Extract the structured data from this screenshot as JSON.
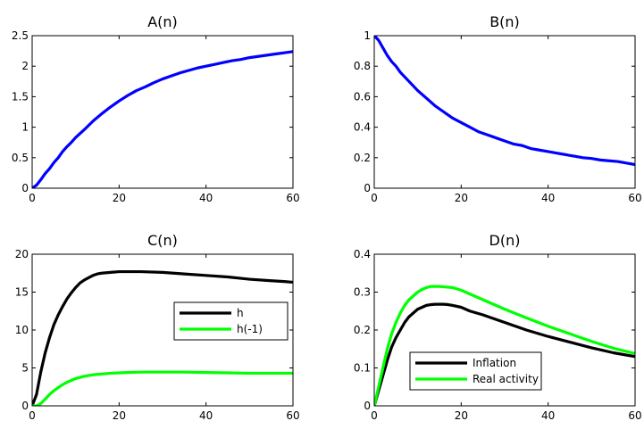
{
  "chart_data": [
    {
      "type": "line",
      "title": "A(n)",
      "xlabel": "",
      "ylabel": "",
      "xlim": [
        0,
        60
      ],
      "ylim": [
        0,
        2.5
      ],
      "xticks": [
        0,
        20,
        40,
        60
      ],
      "yticks": [
        0,
        0.5,
        1,
        1.5,
        2,
        2.5
      ],
      "xtick_labels": [
        "0",
        "20",
        "40",
        "60"
      ],
      "ytick_labels": [
        "0",
        "0.5",
        "1",
        "1.5",
        "2",
        "2.5"
      ],
      "grid": false,
      "legend": null,
      "series": [
        {
          "color": "#0000ff",
          "x": [
            0,
            1,
            2,
            3,
            4,
            5,
            6,
            7,
            8,
            9,
            10,
            12,
            14,
            16,
            18,
            20,
            22,
            24,
            26,
            28,
            30,
            32,
            34,
            36,
            38,
            40,
            42,
            44,
            46,
            48,
            50,
            52,
            54,
            56,
            58,
            60
          ],
          "y": [
            0,
            0.05,
            0.14,
            0.24,
            0.32,
            0.42,
            0.5,
            0.6,
            0.68,
            0.75,
            0.83,
            0.96,
            1.1,
            1.22,
            1.33,
            1.43,
            1.52,
            1.6,
            1.66,
            1.73,
            1.79,
            1.84,
            1.89,
            1.93,
            1.97,
            2.0,
            2.03,
            2.06,
            2.09,
            2.11,
            2.14,
            2.16,
            2.18,
            2.2,
            2.22,
            2.24
          ]
        }
      ]
    },
    {
      "type": "line",
      "title": "B(n)",
      "xlabel": "",
      "ylabel": "",
      "xlim": [
        0,
        60
      ],
      "ylim": [
        0,
        1
      ],
      "xticks": [
        0,
        20,
        40,
        60
      ],
      "yticks": [
        0,
        0.2,
        0.4,
        0.6,
        0.8,
        1
      ],
      "xtick_labels": [
        "0",
        "20",
        "40",
        "60"
      ],
      "ytick_labels": [
        "0",
        "0.2",
        "0.4",
        "0.6",
        "0.8",
        "1"
      ],
      "grid": false,
      "legend": null,
      "series": [
        {
          "color": "#0000ff",
          "x": [
            0,
            1,
            2,
            3,
            4,
            5,
            6,
            8,
            10,
            12,
            14,
            16,
            18,
            20,
            22,
            24,
            26,
            28,
            30,
            32,
            34,
            36,
            38,
            40,
            42,
            44,
            46,
            48,
            50,
            52,
            54,
            56,
            58,
            60
          ],
          "y": [
            1.0,
            0.97,
            0.92,
            0.87,
            0.83,
            0.8,
            0.76,
            0.7,
            0.64,
            0.59,
            0.54,
            0.5,
            0.46,
            0.43,
            0.4,
            0.37,
            0.35,
            0.33,
            0.31,
            0.29,
            0.28,
            0.26,
            0.25,
            0.24,
            0.23,
            0.22,
            0.21,
            0.2,
            0.195,
            0.185,
            0.18,
            0.175,
            0.165,
            0.155
          ]
        }
      ]
    },
    {
      "type": "line",
      "title": "C(n)",
      "xlabel": "",
      "ylabel": "",
      "xlim": [
        0,
        60
      ],
      "ylim": [
        0,
        20
      ],
      "xticks": [
        0,
        20,
        40,
        60
      ],
      "yticks": [
        0,
        5,
        10,
        15,
        20
      ],
      "xtick_labels": [
        "0",
        "20",
        "40",
        "60"
      ],
      "ytick_labels": [
        "0",
        "5",
        "10",
        "15",
        "20"
      ],
      "grid": false,
      "legend": "center-right",
      "series": [
        {
          "name": "h",
          "color": "#000000",
          "x": [
            0,
            1,
            2,
            3,
            4,
            5,
            6,
            7,
            8,
            9,
            10,
            11,
            12,
            13,
            14,
            15,
            16,
            18,
            20,
            22,
            25,
            30,
            35,
            40,
            45,
            50,
            55,
            58,
            60
          ],
          "y": [
            0,
            1.5,
            4.5,
            7.0,
            9.0,
            10.7,
            12.0,
            13.1,
            14.1,
            14.9,
            15.6,
            16.2,
            16.6,
            16.9,
            17.2,
            17.4,
            17.5,
            17.6,
            17.7,
            17.7,
            17.7,
            17.6,
            17.4,
            17.2,
            17.0,
            16.7,
            16.5,
            16.4,
            16.3
          ]
        },
        {
          "name": "h(-1)",
          "color": "#00ff00",
          "x": [
            0,
            1,
            2,
            3,
            4,
            5,
            6,
            7,
            8,
            10,
            12,
            14,
            16,
            18,
            20,
            22,
            25,
            30,
            35,
            40,
            45,
            50,
            55,
            60
          ],
          "y": [
            0,
            0,
            0.3,
            0.9,
            1.5,
            2.0,
            2.4,
            2.8,
            3.1,
            3.6,
            3.9,
            4.1,
            4.2,
            4.3,
            4.35,
            4.4,
            4.45,
            4.45,
            4.45,
            4.4,
            4.35,
            4.3,
            4.3,
            4.3
          ]
        }
      ]
    },
    {
      "type": "line",
      "title": "D(n)",
      "xlabel": "",
      "ylabel": "",
      "xlim": [
        0,
        60
      ],
      "ylim": [
        0,
        0.4
      ],
      "xticks": [
        0,
        20,
        40,
        60
      ],
      "yticks": [
        0,
        0.1,
        0.2,
        0.3,
        0.4
      ],
      "xtick_labels": [
        "0",
        "20",
        "40",
        "60"
      ],
      "ytick_labels": [
        "0",
        "0.1",
        "0.2",
        "0.3",
        "0.4"
      ],
      "grid": false,
      "legend": "bottom-left",
      "series": [
        {
          "name": "Inflation",
          "color": "#000000",
          "x": [
            0,
            1,
            2,
            3,
            4,
            5,
            6,
            7,
            8,
            9,
            10,
            11,
            12,
            13,
            14,
            15,
            16,
            17,
            18,
            20,
            22,
            25,
            28,
            30,
            35,
            40,
            45,
            50,
            55,
            60
          ],
          "y": [
            0,
            0.04,
            0.08,
            0.12,
            0.155,
            0.18,
            0.2,
            0.22,
            0.235,
            0.245,
            0.255,
            0.26,
            0.265,
            0.267,
            0.268,
            0.268,
            0.268,
            0.267,
            0.265,
            0.26,
            0.25,
            0.24,
            0.228,
            0.22,
            0.2,
            0.183,
            0.168,
            0.153,
            0.14,
            0.13
          ]
        },
        {
          "name": "Real activity",
          "color": "#00ff00",
          "x": [
            0,
            1,
            2,
            3,
            4,
            5,
            6,
            7,
            8,
            9,
            10,
            11,
            12,
            13,
            14,
            15,
            16,
            17,
            18,
            20,
            22,
            25,
            28,
            30,
            35,
            40,
            45,
            50,
            55,
            60
          ],
          "y": [
            0,
            0.05,
            0.1,
            0.15,
            0.19,
            0.22,
            0.245,
            0.265,
            0.28,
            0.29,
            0.3,
            0.307,
            0.312,
            0.315,
            0.315,
            0.315,
            0.314,
            0.313,
            0.312,
            0.305,
            0.295,
            0.28,
            0.265,
            0.255,
            0.232,
            0.21,
            0.19,
            0.17,
            0.152,
            0.138
          ]
        }
      ]
    }
  ]
}
